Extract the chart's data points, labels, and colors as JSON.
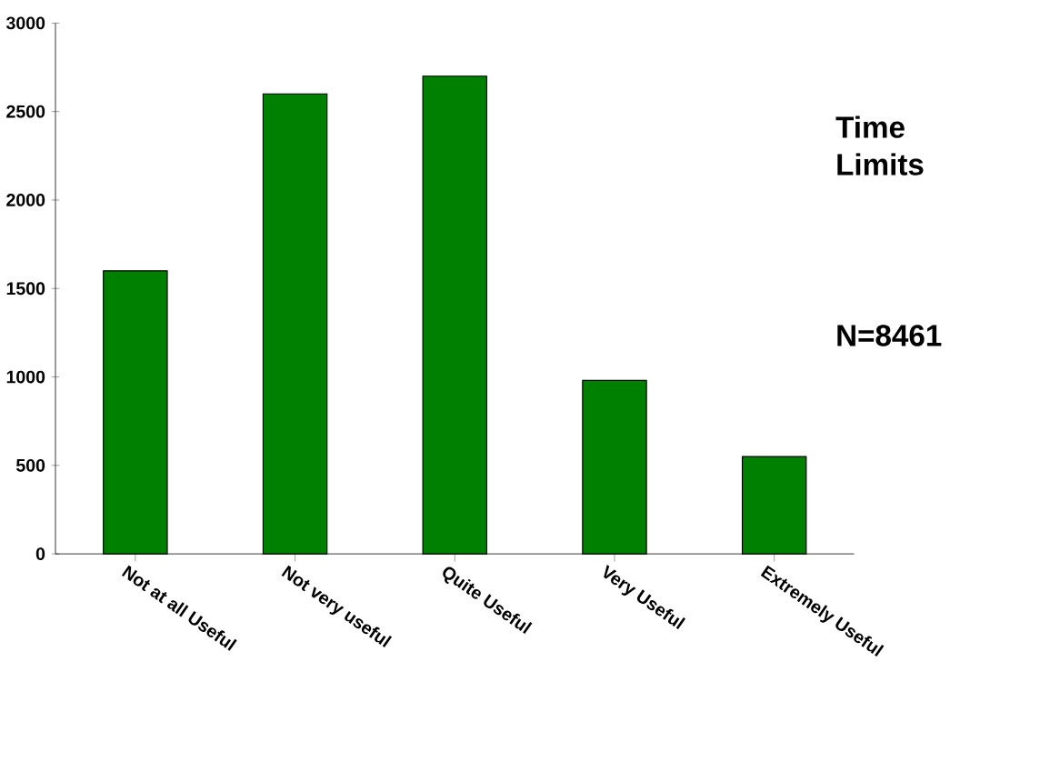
{
  "chart_data": {
    "type": "bar",
    "title": "Time Limits",
    "annotations": [
      "N=8461"
    ],
    "categories": [
      "Not at all Useful",
      "Not very useful",
      "Quite Useful",
      "Very Useful",
      "Extremely Useful"
    ],
    "values": [
      1600,
      2600,
      2700,
      980,
      550
    ],
    "color": "#008000",
    "ylim": [
      0,
      3000
    ],
    "yticks": [
      0,
      500,
      1000,
      1500,
      2000,
      2500,
      3000
    ]
  }
}
